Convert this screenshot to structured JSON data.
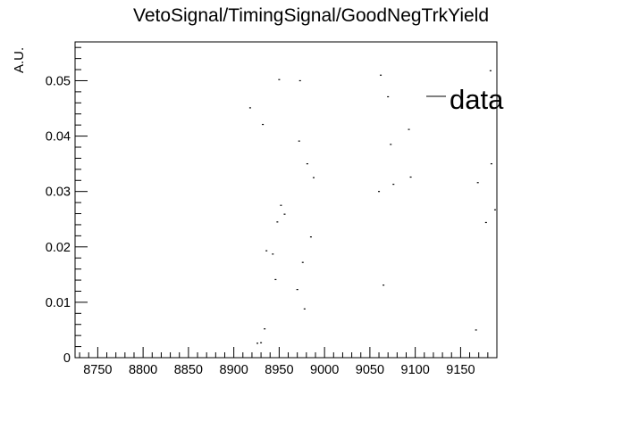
{
  "chart_data": {
    "type": "scatter",
    "title": "VetoSignal/TimingSignal/GoodNegTrkYield",
    "xlabel": "",
    "ylabel": "A.U.",
    "xlim": [
      8725,
      9190
    ],
    "ylim": [
      0,
      0.057
    ],
    "x_ticks": [
      8750,
      8800,
      8850,
      8900,
      8950,
      9000,
      9050,
      9100,
      9150
    ],
    "x_tick_labels": [
      "8750",
      "8800",
      "8850",
      "8900",
      "8950",
      "9000",
      "9050",
      "9100",
      "9150"
    ],
    "y_ticks": [
      0,
      0.01,
      0.02,
      0.03,
      0.04,
      0.05
    ],
    "y_tick_labels": [
      "0",
      "0.01",
      "0.02",
      "0.03",
      "0.04",
      "0.05"
    ],
    "legend": {
      "position": "top-right",
      "entries": [
        "data"
      ]
    },
    "grid": false,
    "series": [
      {
        "name": "data",
        "points": [
          [
            8918,
            0.0451
          ],
          [
            8926,
            0.0026
          ],
          [
            8930,
            0.0027
          ],
          [
            8932,
            0.0421
          ],
          [
            8934,
            0.0052
          ],
          [
            8936,
            0.0193
          ],
          [
            8943,
            0.0187
          ],
          [
            8946,
            0.0141
          ],
          [
            8948,
            0.0245
          ],
          [
            8950,
            0.0502
          ],
          [
            8952,
            0.0275
          ],
          [
            8956,
            0.0259
          ],
          [
            8970,
            0.0123
          ],
          [
            8972,
            0.0391
          ],
          [
            8973,
            0.05
          ],
          [
            8976,
            0.0172
          ],
          [
            8978,
            0.0088
          ],
          [
            8981,
            0.035
          ],
          [
            8985,
            0.0218
          ],
          [
            8988,
            0.0325
          ],
          [
            9060,
            0.03
          ],
          [
            9062,
            0.051
          ],
          [
            9065,
            0.0131
          ],
          [
            9070,
            0.0471
          ],
          [
            9073,
            0.0385
          ],
          [
            9076,
            0.0313
          ],
          [
            9093,
            0.0412
          ],
          [
            9095,
            0.0326
          ],
          [
            9167,
            0.005
          ],
          [
            9169,
            0.0316
          ],
          [
            9178,
            0.0244
          ],
          [
            9183,
            0.0518
          ],
          [
            9184,
            0.035
          ],
          [
            9188,
            0.0267
          ]
        ]
      }
    ]
  }
}
